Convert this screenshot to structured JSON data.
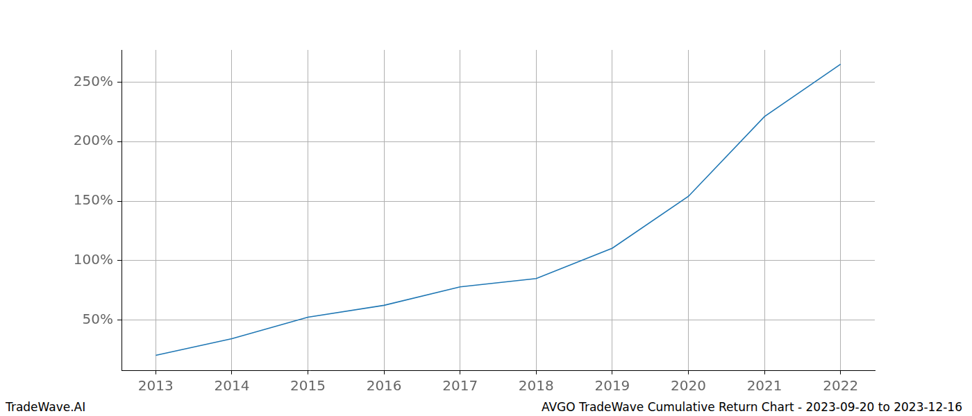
{
  "chart_data": {
    "type": "line",
    "title": "AVGO TradeWave Cumulative Return Chart - 2023-09-20 to 2023-12-16",
    "annotations": [
      "TradeWave.AI"
    ],
    "x": [
      2013,
      2014,
      2015,
      2016,
      2017,
      2018,
      2019,
      2020,
      2021,
      2022
    ],
    "values": [
      20.5,
      34.5,
      52.5,
      62.5,
      78,
      85,
      110.5,
      154,
      221,
      265
    ],
    "color": "#1f77b4",
    "xlim": [
      2012.55,
      2022.45
    ],
    "xticks": [
      2013,
      2014,
      2015,
      2016,
      2017,
      2018,
      2019,
      2020,
      2021,
      2022
    ],
    "ylim": [
      8,
      277
    ],
    "yticks": [
      {
        "value": 50,
        "label": "50%"
      },
      {
        "value": 100,
        "label": "100%"
      },
      {
        "value": 150,
        "label": "150%"
      },
      {
        "value": 200,
        "label": "200%"
      },
      {
        "value": 250,
        "label": "250%"
      }
    ],
    "grid": true
  }
}
